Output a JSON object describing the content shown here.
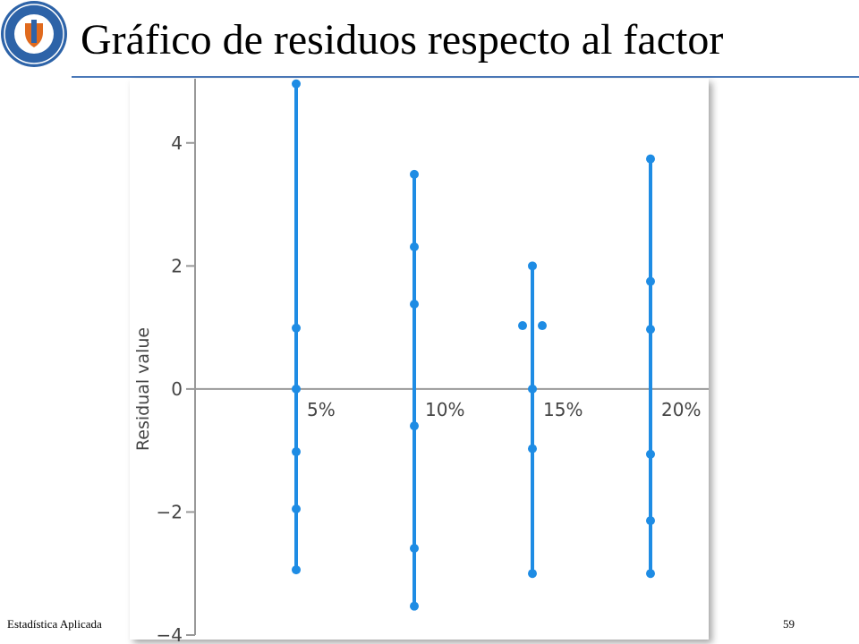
{
  "slide": {
    "title": "Gráfico de residuos respecto al factor",
    "footer": "Estadística Aplicada",
    "page": 59
  },
  "chart_data": {
    "type": "strip",
    "y_label": "Residual value",
    "categories": [
      "5%",
      "10%",
      "15%",
      "20%"
    ],
    "color": "#1e8ce4",
    "values": [
      [
        4.96,
        0.99,
        0,
        -1.02,
        -1.95,
        -2.94
      ],
      [
        3.49,
        2.31,
        1.38,
        -0.6,
        -2.59,
        -3.53
      ],
      [
        2.0,
        1.03,
        1.03,
        0,
        -0.97,
        -3.0
      ],
      [
        3.74,
        1.75,
        0.97,
        -1.06,
        -2.14,
        -3.0
      ]
    ],
    "ylim": [
      -4,
      5
    ],
    "yticks": [
      {
        "value": -4,
        "label": "−4"
      },
      {
        "value": -2,
        "label": "−2"
      },
      0,
      2,
      4
    ]
  }
}
